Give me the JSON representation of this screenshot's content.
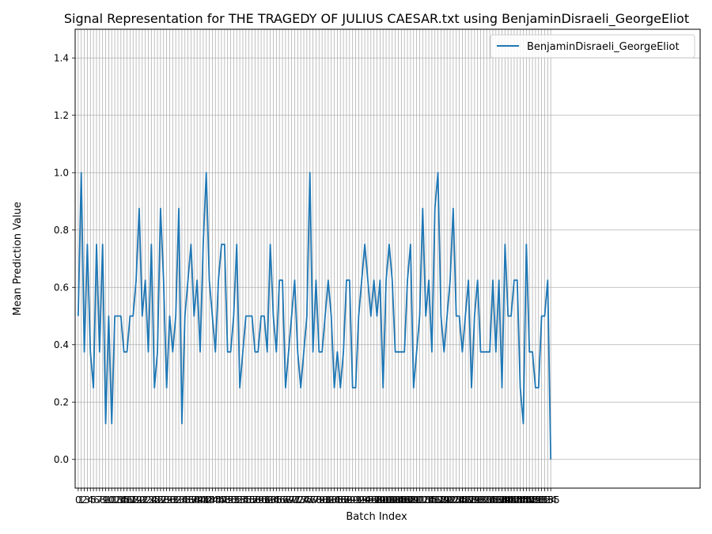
{
  "chart_data": {
    "type": "line",
    "title": "Signal Representation for THE TRAGEDY OF JULIUS CAESAR.txt using BenjaminDisraeli_GeorgeEliot",
    "xlabel": "Batch Index",
    "ylabel": "Mean Prediction Value",
    "ylim": [
      -0.1,
      1.5
    ],
    "yticks": [
      0.0,
      0.2,
      0.4,
      0.6,
      0.8,
      1.0,
      1.2,
      1.4
    ],
    "xlim": [
      -1,
      204
    ],
    "grid": true,
    "legend_position": "top-right",
    "series": [
      {
        "name": "BenjaminDisraeli_GeorgeEliot",
        "color": "#1f77b4",
        "values": [
          0.5,
          1.0,
          0.375,
          0.75,
          0.375,
          0.25,
          0.75,
          0.375,
          0.75,
          0.125,
          0.5,
          0.125,
          0.5,
          0.5,
          0.5,
          0.375,
          0.375,
          0.5,
          0.5,
          0.625,
          0.875,
          0.5,
          0.625,
          0.375,
          0.75,
          0.25,
          0.375,
          0.875,
          0.625,
          0.25,
          0.5,
          0.375,
          0.5,
          0.875,
          0.125,
          0.5,
          0.625,
          0.75,
          0.5,
          0.625,
          0.375,
          0.75,
          1.0,
          0.625,
          0.5,
          0.375,
          0.625,
          0.75,
          0.75,
          0.375,
          0.375,
          0.5,
          0.75,
          0.25,
          0.375,
          0.5,
          0.5,
          0.5,
          0.375,
          0.375,
          0.5,
          0.5,
          0.375,
          0.75,
          0.5,
          0.375,
          0.625,
          0.625,
          0.25,
          0.375,
          0.5,
          0.625,
          0.375,
          0.25,
          0.375,
          0.5,
          1.0,
          0.375,
          0.625,
          0.375,
          0.375,
          0.5,
          0.625,
          0.5,
          0.25,
          0.375,
          0.25,
          0.375,
          0.625,
          0.625,
          0.25,
          0.25,
          0.5,
          0.625,
          0.75,
          0.625,
          0.5,
          0.625,
          0.5,
          0.625,
          0.25,
          0.625,
          0.75,
          0.625,
          0.375,
          0.375,
          0.375,
          0.375,
          0.625,
          0.75,
          0.25,
          0.375,
          0.5,
          0.875,
          0.5,
          0.625,
          0.375,
          0.875,
          1.0,
          0.5,
          0.375,
          0.5,
          0.625,
          0.875,
          0.5,
          0.5,
          0.375,
          0.5,
          0.625,
          0.25,
          0.5,
          0.625,
          0.375,
          0.375,
          0.375,
          0.375,
          0.625,
          0.375,
          0.625,
          0.25,
          0.75,
          0.5,
          0.5,
          0.625,
          0.625,
          0.25,
          0.125,
          0.75,
          0.375,
          0.375,
          0.25,
          0.25,
          0.5,
          0.5,
          0.625,
          0.0
        ]
      }
    ]
  }
}
